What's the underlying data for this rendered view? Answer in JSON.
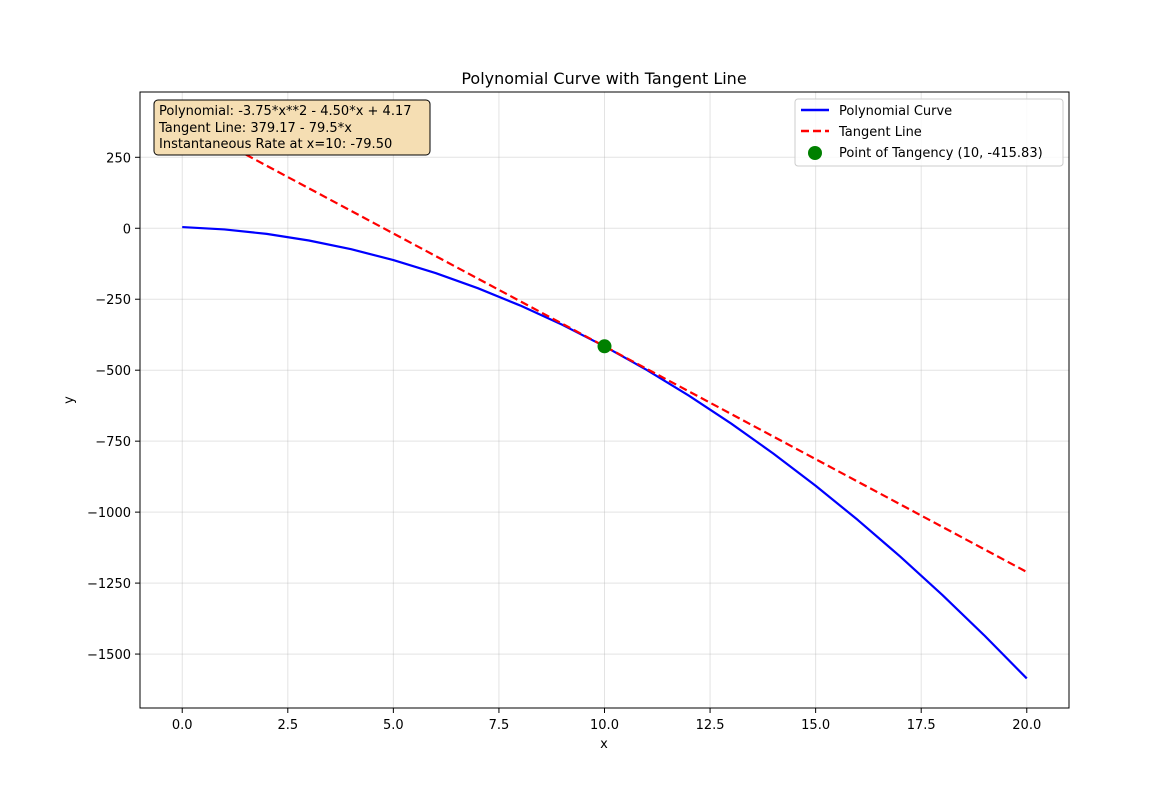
{
  "chart_data": {
    "type": "line",
    "title": "Polynomial Curve with Tangent Line",
    "xlabel": "x",
    "ylabel": "y",
    "xlim": [
      -1.0,
      21.0
    ],
    "ylim": [
      -1690,
      480
    ],
    "x_ticks": [
      0.0,
      2.5,
      5.0,
      7.5,
      10.0,
      12.5,
      15.0,
      17.5,
      20.0
    ],
    "x_tick_labels": [
      "0.0",
      "2.5",
      "5.0",
      "7.5",
      "10.0",
      "12.5",
      "15.0",
      "17.5",
      "20.0"
    ],
    "y_ticks": [
      250,
      0,
      -250,
      -500,
      -750,
      -1000,
      -1250,
      -1500
    ],
    "y_tick_labels": [
      "250",
      "0",
      "−250",
      "−500",
      "−750",
      "−1000",
      "−1250",
      "−1500"
    ],
    "grid": true,
    "legend_position": "top-right",
    "series": [
      {
        "name": "Polynomial Curve",
        "style": "solid",
        "color": "#0000ff",
        "x": [
          0,
          1,
          2,
          3,
          4,
          5,
          6,
          7,
          8,
          9,
          10,
          11,
          12,
          13,
          14,
          15,
          16,
          17,
          18,
          19,
          20
        ],
        "y": [
          4.17,
          -4.08,
          -19.83,
          -43.08,
          -73.83,
          -112.08,
          -157.83,
          -211.08,
          -271.83,
          -340.08,
          -415.83,
          -499.08,
          -589.83,
          -688.08,
          -793.83,
          -907.08,
          -1027.83,
          -1156.08,
          -1291.83,
          -1435.08,
          -1585.83
        ]
      },
      {
        "name": "Tangent Line",
        "style": "dashed",
        "color": "#ff0000",
        "x": [
          0,
          20
        ],
        "y": [
          379.17,
          -1210.83
        ]
      },
      {
        "name": "Point of Tangency (10, -415.83)",
        "style": "point",
        "color": "#008000",
        "x": [
          10
        ],
        "y": [
          -415.83
        ]
      }
    ],
    "annotation": {
      "lines": [
        "Polynomial: -3.75*x**2 - 4.50*x + 4.17",
        "Tangent Line: 379.17 - 79.5*x",
        "Instantaneous Rate at x=10: -79.50"
      ],
      "position": "top-left",
      "background": "#f5deb3"
    }
  }
}
